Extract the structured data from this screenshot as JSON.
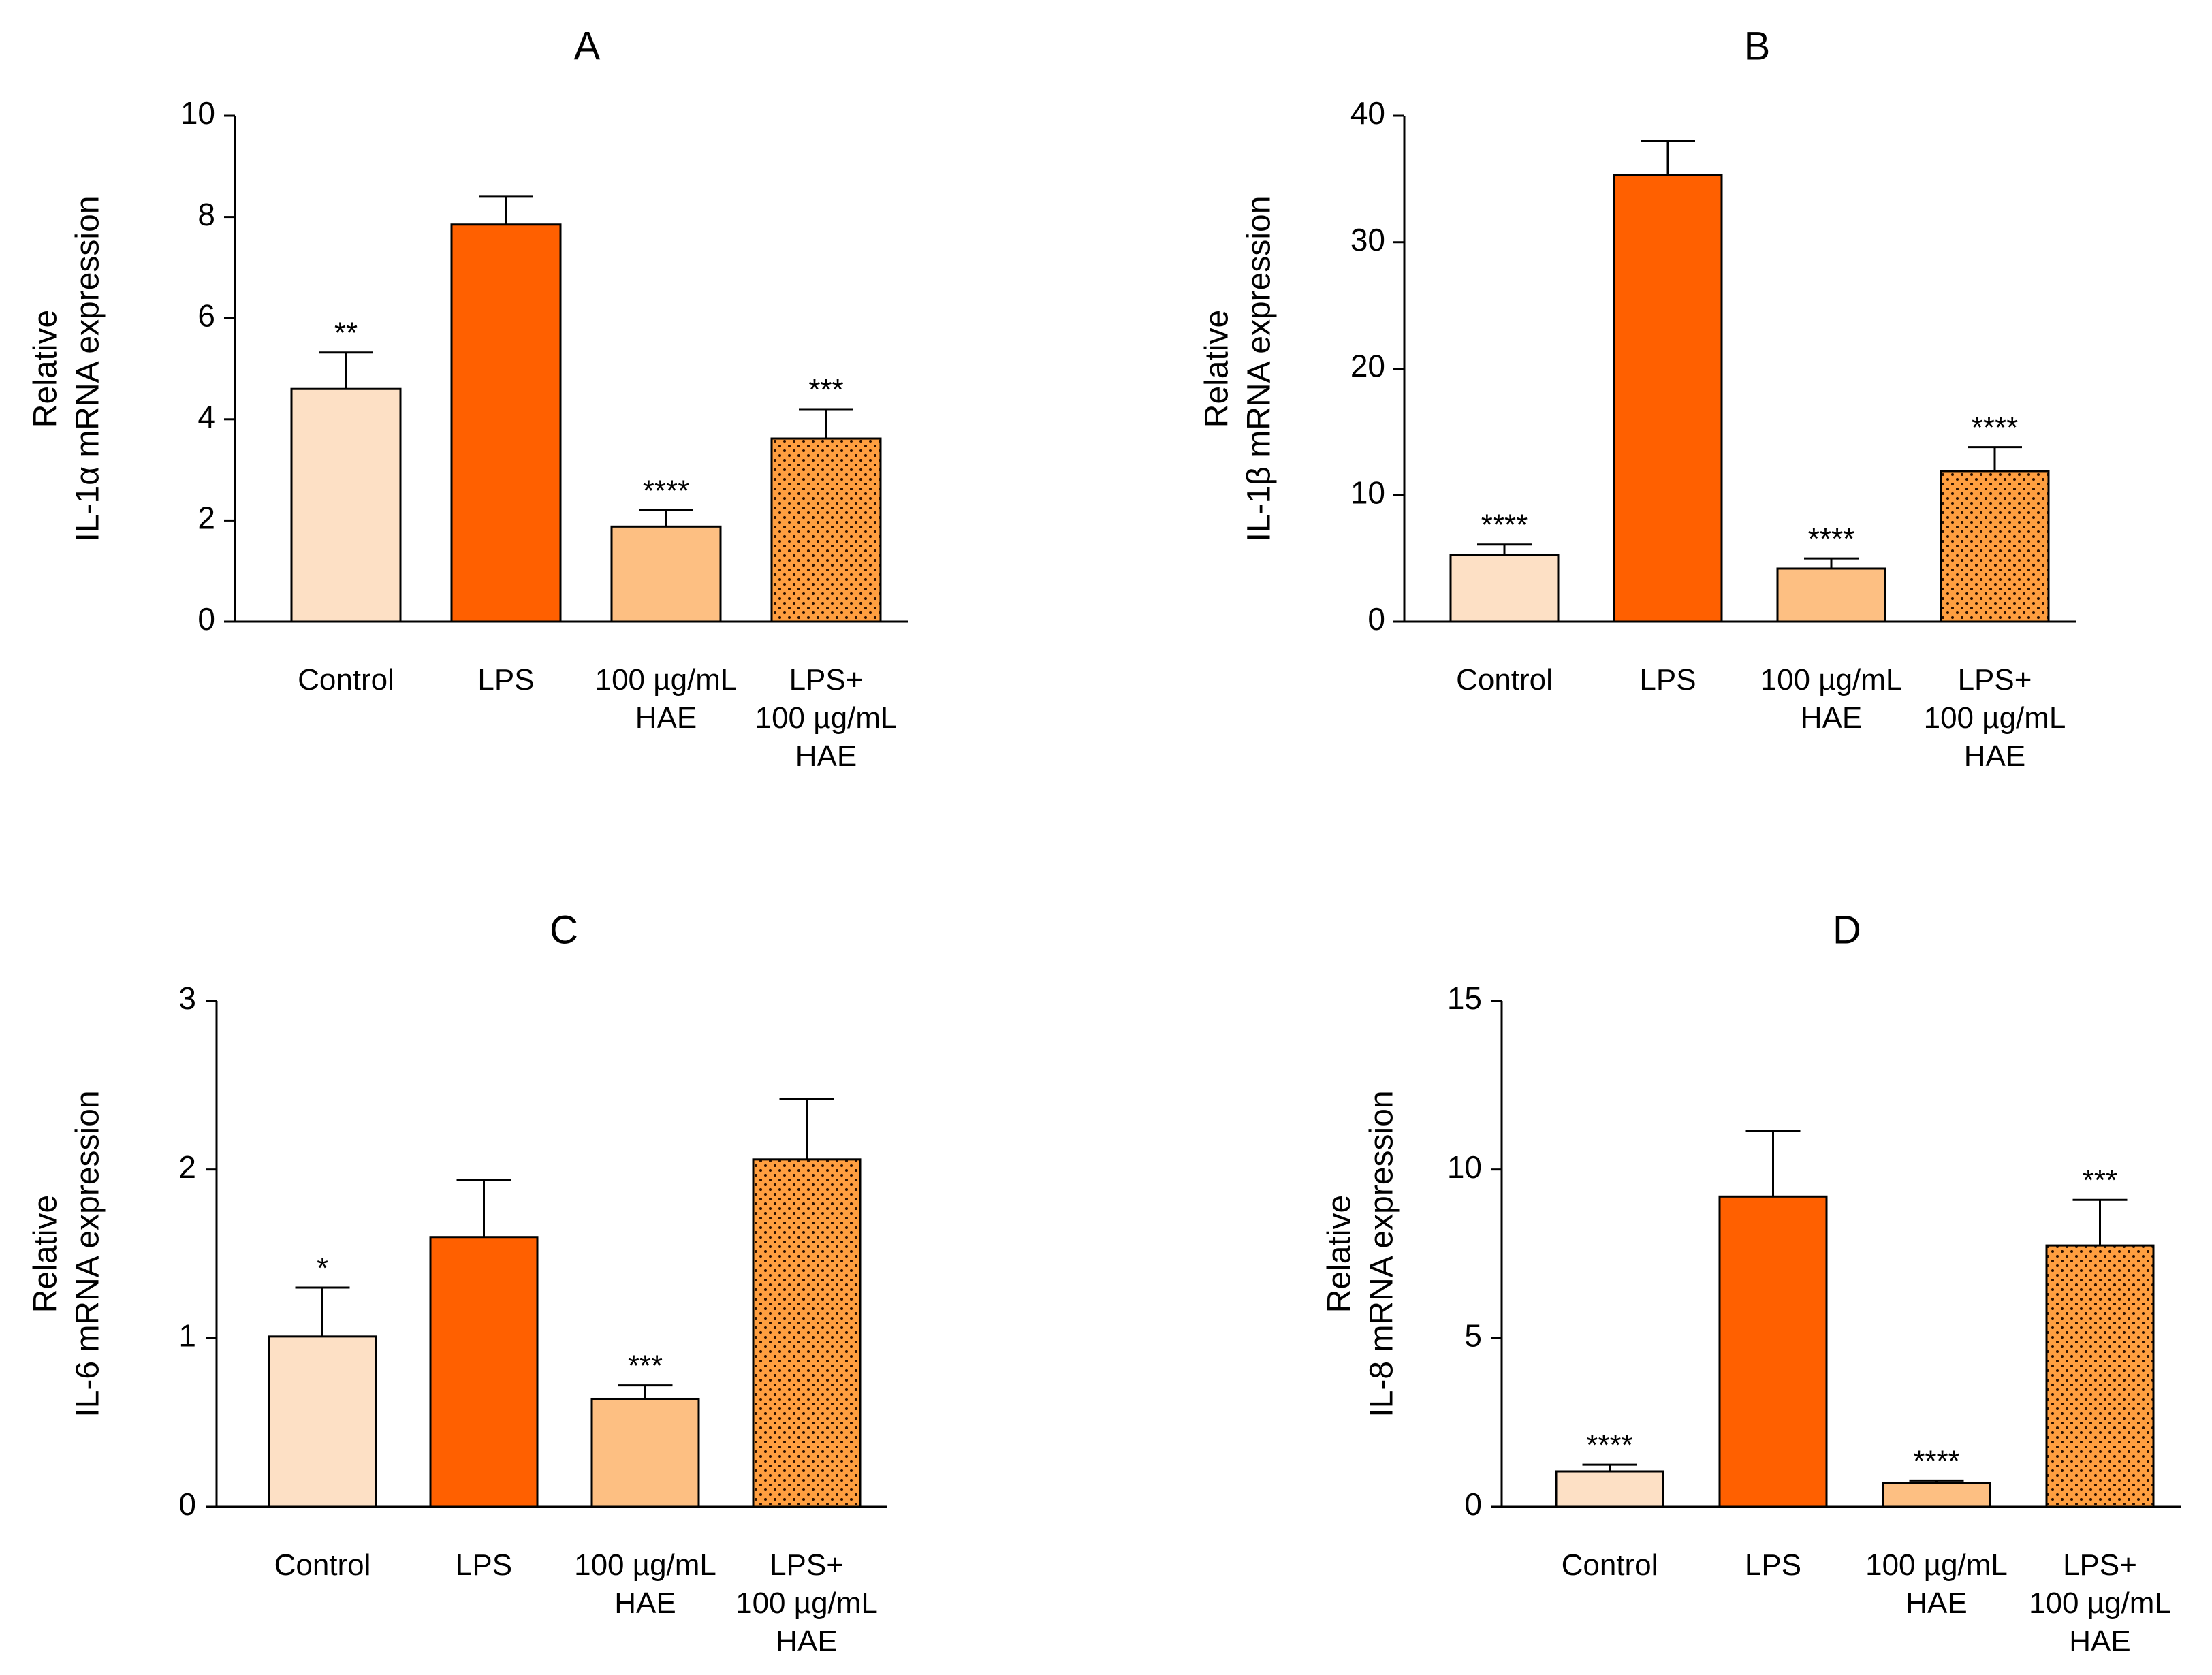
{
  "chart_data": [
    {
      "type": "bar",
      "title": "A",
      "ylabel": [
        "Relative",
        "IL-1α mRNA expression"
      ],
      "ylim": [
        0,
        10
      ],
      "yticks": [
        0,
        2,
        4,
        6,
        8,
        10
      ],
      "categories": [
        [
          "Control"
        ],
        [
          "LPS"
        ],
        [
          "100 µg/mL",
          "HAE"
        ],
        [
          "LPS+",
          "100 µg/mL",
          "HAE"
        ]
      ],
      "values": [
        4.6,
        7.85,
        1.88,
        3.62
      ],
      "errors": [
        0.72,
        0.55,
        0.32,
        0.58
      ],
      "annotations": [
        "**",
        "",
        "****",
        "***"
      ]
    },
    {
      "type": "bar",
      "title": "B",
      "ylabel": [
        "Relative",
        "IL-1β mRNA expression"
      ],
      "ylim": [
        0,
        40
      ],
      "yticks": [
        0,
        10,
        20,
        30,
        40
      ],
      "categories": [
        [
          "Control"
        ],
        [
          "LPS"
        ],
        [
          "100 µg/mL",
          "HAE"
        ],
        [
          "LPS+",
          "100 µg/mL",
          "HAE"
        ]
      ],
      "values": [
        5.3,
        35.3,
        4.2,
        11.9
      ],
      "errors": [
        0.8,
        2.7,
        0.8,
        1.9
      ],
      "annotations": [
        "****",
        "",
        "****",
        "****"
      ]
    },
    {
      "type": "bar",
      "title": "C",
      "ylabel": [
        "Relative",
        "IL-6 mRNA expression"
      ],
      "ylim": [
        0,
        3
      ],
      "yticks": [
        0,
        1,
        2,
        3
      ],
      "categories": [
        [
          "Control"
        ],
        [
          "LPS"
        ],
        [
          "100 µg/mL",
          "HAE"
        ],
        [
          "LPS+",
          "100 µg/mL",
          "HAE"
        ]
      ],
      "values": [
        1.01,
        1.6,
        0.64,
        2.06
      ],
      "errors": [
        0.29,
        0.34,
        0.08,
        0.36
      ],
      "annotations": [
        "*",
        "",
        "***",
        ""
      ]
    },
    {
      "type": "bar",
      "title": "D",
      "ylabel": [
        "Relative",
        "IL-8 mRNA expression"
      ],
      "ylim": [
        0,
        15
      ],
      "yticks": [
        0,
        5,
        10,
        15
      ],
      "categories": [
        [
          "Control"
        ],
        [
          "LPS"
        ],
        [
          "100 µg/mL",
          "HAE"
        ],
        [
          "LPS+",
          "100 µg/mL",
          "HAE"
        ]
      ],
      "values": [
        1.05,
        9.2,
        0.7,
        7.75
      ],
      "errors": [
        0.2,
        1.95,
        0.08,
        1.35
      ],
      "annotations": [
        "****",
        "",
        "****",
        "***"
      ]
    }
  ],
  "colors": {
    "control": "#FDE0C5",
    "lps": "#FF6000",
    "hae": "#FDBF82",
    "lps_hae": "#FF9F40",
    "axis": "#000000"
  },
  "bar_fill_keys": [
    "control",
    "lps",
    "hae",
    "lps_hae"
  ],
  "bar_pattern": [
    false,
    false,
    false,
    true
  ]
}
